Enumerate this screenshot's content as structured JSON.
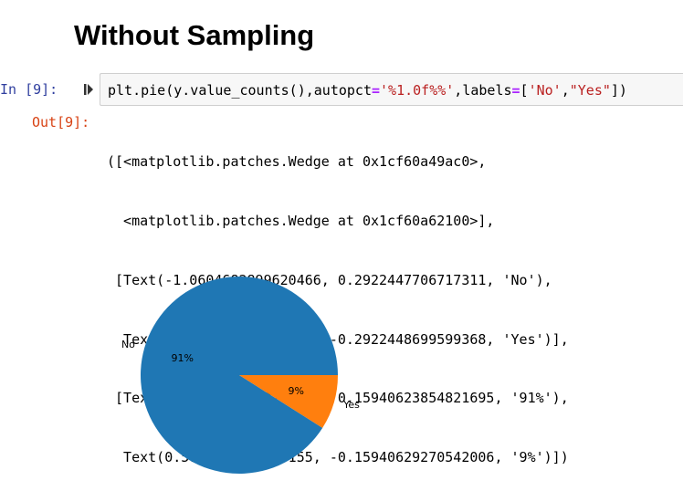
{
  "heading": "Without Sampling",
  "cell": {
    "input_prompt": "In [9]:",
    "code": {
      "prefix": "plt.pie(y.value_counts(),autopct",
      "eq1": "=",
      "str1": "'%1.0f%%'",
      "mid": ",labels",
      "eq2": "=",
      "list_open": "[",
      "str2": "'No'",
      "comma": ",",
      "str3": "\"Yes\"",
      "suffix": "])"
    },
    "output_prompt": "Out[9]:",
    "output_lines": [
      "([<matplotlib.patches.Wedge at 0x1cf60a49ac0>,",
      "  <matplotlib.patches.Wedge at 0x1cf60a62100>],",
      " [Text(-1.0604682899620466, 0.2922447706717311, 'No'),",
      "  Text(1.0604682626001118, -0.2922448699599368, 'Yes')],",
      " [Text(-0.5784372490702072, 0.15940623854821695, '91%'),",
      "  Text(0.5784372341455155, -0.15940629270542006, '9%')])"
    ]
  },
  "chart_data": {
    "type": "pie",
    "labels": [
      "No",
      "Yes"
    ],
    "values": [
      91,
      9
    ],
    "autopct": [
      "91%",
      "9%"
    ],
    "colors": [
      "#1f77b4",
      "#ff7f0e"
    ],
    "start_angle_deg": 0,
    "counterclockwise": true
  }
}
